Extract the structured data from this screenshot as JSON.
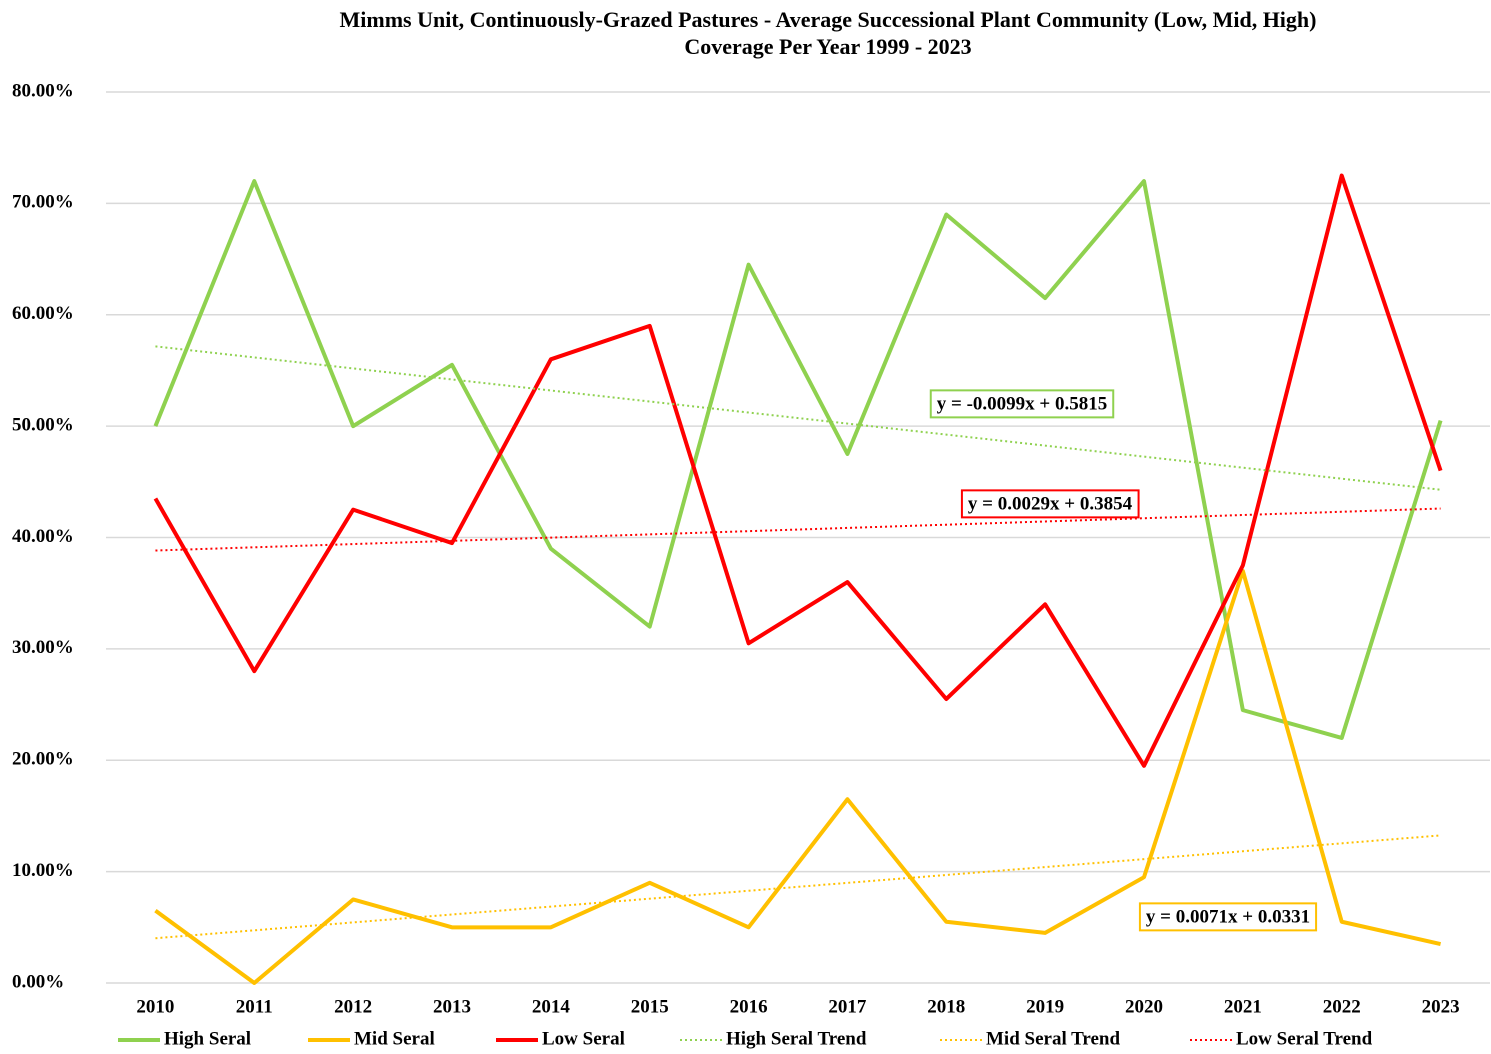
{
  "chart_data": {
    "type": "line",
    "title": "Mimms Unit, Continuously-Grazed Pastures - Average Successional Plant Community (Low, Mid, High)",
    "subtitle": "Coverage Per Year 1999 - 2023",
    "categories": [
      "2010",
      "2011",
      "2012",
      "2013",
      "2014",
      "2015",
      "2016",
      "2017",
      "2018",
      "2019",
      "2020",
      "2021",
      "2022",
      "2023"
    ],
    "series": [
      {
        "name": "High Seral",
        "color": "#8fd14f",
        "style": "solid",
        "values": [
          50,
          72,
          50,
          55.5,
          39,
          32,
          64.5,
          47.5,
          69,
          61.5,
          72,
          24.5,
          22,
          50.5
        ]
      },
      {
        "name": "Mid Seral",
        "color": "#ffc000",
        "style": "solid",
        "values": [
          6.5,
          0,
          7.5,
          5,
          5,
          9,
          5,
          16.5,
          5.5,
          4.5,
          9.5,
          37,
          5.5,
          3.5
        ]
      },
      {
        "name": "Low Seral",
        "color": "#ff0000",
        "style": "solid",
        "values": [
          43.5,
          28,
          42.5,
          39.5,
          56,
          59,
          30.5,
          36,
          25.5,
          34,
          19.5,
          37.5,
          72.5,
          46
        ]
      },
      {
        "name": "High Seral Trend",
        "color": "#8fd14f",
        "style": "dotted",
        "values": [
          57.16,
          56.17,
          55.18,
          54.19,
          53.2,
          52.21,
          51.22,
          50.23,
          49.24,
          48.25,
          47.26,
          46.27,
          45.28,
          44.29
        ]
      },
      {
        "name": "Mid Seral Trend",
        "color": "#ffc000",
        "style": "dotted",
        "values": [
          4.02,
          4.73,
          5.44,
          6.15,
          6.86,
          7.57,
          8.28,
          8.99,
          9.7,
          10.41,
          11.12,
          11.83,
          12.54,
          13.25
        ]
      },
      {
        "name": "Low Seral Trend",
        "color": "#ff0000",
        "style": "dotted",
        "values": [
          38.83,
          39.12,
          39.41,
          39.7,
          39.99,
          40.28,
          40.57,
          40.86,
          41.15,
          41.44,
          41.73,
          42.02,
          42.31,
          42.6
        ]
      }
    ],
    "annotations": [
      {
        "text": "y = -0.0099x + 0.5815",
        "color": "#8fd14f"
      },
      {
        "text": "y = 0.0029x + 0.3854",
        "color": "#ff0000"
      },
      {
        "text": "y = 0.0071x + 0.0331",
        "color": "#ffc000"
      }
    ],
    "ylim": [
      0,
      80
    ],
    "yticks": [
      {
        "value": 0,
        "label": "0.00%"
      },
      {
        "value": 10,
        "label": "10.00%"
      },
      {
        "value": 20,
        "label": "20.00%"
      },
      {
        "value": 30,
        "label": "30.00%"
      },
      {
        "value": 40,
        "label": "40.00%"
      },
      {
        "value": 50,
        "label": "50.00%"
      },
      {
        "value": 60,
        "label": "60.00%"
      },
      {
        "value": 70,
        "label": "70.00%"
      },
      {
        "value": 80,
        "label": "80.00%"
      }
    ],
    "grid": true,
    "legend": "bottom"
  }
}
